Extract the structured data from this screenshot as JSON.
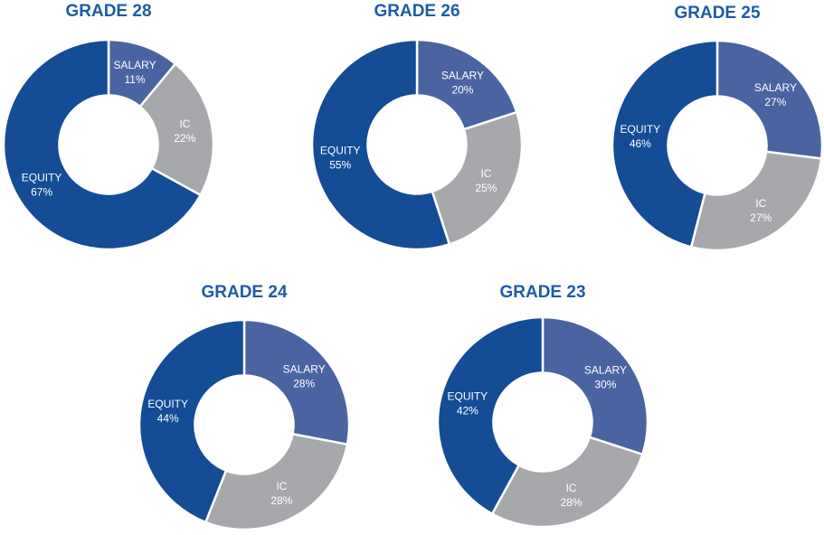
{
  "colors": {
    "salary": "#4a64a1",
    "ic": "#a6a8ab",
    "equity": "#144c95",
    "title": "#1f5aa6",
    "separator": "#ffffff"
  },
  "chart_data": [
    {
      "type": "pie",
      "title": "GRADE 28",
      "slices": [
        {
          "label": "SALARY",
          "value": 11,
          "display": "11%"
        },
        {
          "label": "IC",
          "value": 22,
          "display": "22%"
        },
        {
          "label": "EQUITY",
          "value": 67,
          "display": "67%"
        }
      ]
    },
    {
      "type": "pie",
      "title": "GRADE 26",
      "slices": [
        {
          "label": "SALARY",
          "value": 20,
          "display": "20%"
        },
        {
          "label": "IC",
          "value": 25,
          "display": "25%"
        },
        {
          "label": "EQUITY",
          "value": 55,
          "display": "55%"
        }
      ]
    },
    {
      "type": "pie",
      "title": "GRADE 25",
      "slices": [
        {
          "label": "SALARY",
          "value": 27,
          "display": "27%"
        },
        {
          "label": "IC",
          "value": 27,
          "display": "27%"
        },
        {
          "label": "EQUITY",
          "value": 46,
          "display": "46%"
        }
      ]
    },
    {
      "type": "pie",
      "title": "GRADE 24",
      "slices": [
        {
          "label": "SALARY",
          "value": 28,
          "display": "28%"
        },
        {
          "label": "IC",
          "value": 28,
          "display": "28%"
        },
        {
          "label": "EQUITY",
          "value": 44,
          "display": "44%"
        }
      ]
    },
    {
      "type": "pie",
      "title": "GRADE 23",
      "slices": [
        {
          "label": "SALARY",
          "value": 30,
          "display": "30%"
        },
        {
          "label": "IC",
          "value": 28,
          "display": "28%"
        },
        {
          "label": "EQUITY",
          "value": 42,
          "display": "42%"
        }
      ]
    }
  ]
}
